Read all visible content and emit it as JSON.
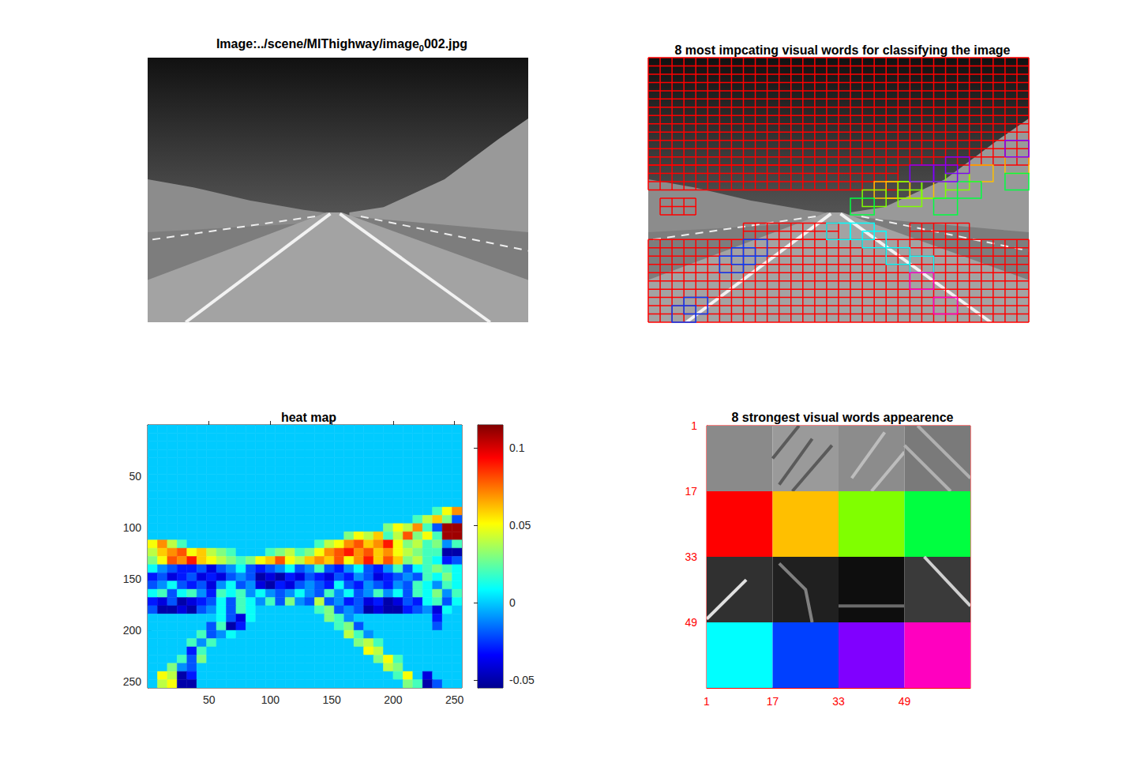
{
  "image_panel": {
    "title": {
      "text": "Image:../scene/MIThighway/image",
      "subscript": "0",
      "tail": "002.jpg"
    }
  },
  "overlay_panel": {
    "title": "8 most impcating visual words for classifying the image",
    "extent": [
      256,
      256
    ],
    "box_size": 16,
    "stride": 8
  },
  "words": [
    {
      "color": "#FF0000",
      "regions": [
        [
          0,
          0,
          256,
          104
        ],
        [
          0,
          104,
          168,
          128
        ],
        [
          8,
          136,
          32,
          152
        ],
        [
          64,
          160,
          128,
          176
        ],
        [
          176,
          160,
          216,
          176
        ],
        [
          0,
          176,
          256,
          256
        ]
      ]
    },
    {
      "color": "#FFBF00",
      "boxes": [
        [
          216,
          104
        ],
        [
          240,
          96
        ],
        [
          152,
          120
        ],
        [
          160,
          120
        ],
        [
          176,
          120
        ]
      ]
    },
    {
      "color": "#80FF00",
      "boxes": [
        [
          144,
          128
        ],
        [
          168,
          120
        ],
        [
          184,
          120
        ],
        [
          200,
          112
        ],
        [
          168,
          128
        ]
      ]
    },
    {
      "color": "#00FF40",
      "boxes": [
        [
          136,
          136
        ],
        [
          192,
          136
        ],
        [
          240,
          112
        ],
        [
          208,
          120
        ]
      ]
    },
    {
      "color": "#00FFFF",
      "boxes": [
        [
          120,
          160
        ],
        [
          136,
          160
        ],
        [
          144,
          168
        ],
        [
          160,
          184
        ],
        [
          176,
          192
        ]
      ]
    },
    {
      "color": "#0040FF",
      "boxes": [
        [
          64,
          176
        ],
        [
          56,
          184
        ],
        [
          48,
          192
        ],
        [
          16,
          240
        ],
        [
          24,
          232
        ]
      ]
    },
    {
      "color": "#8000FF",
      "boxes": [
        [
          240,
          80
        ],
        [
          176,
          104
        ],
        [
          192,
          104
        ],
        [
          200,
          96
        ]
      ]
    },
    {
      "color": "#FF00BF",
      "boxes": [
        [
          176,
          208
        ],
        [
          192,
          232
        ]
      ]
    }
  ],
  "appearance_panel": {
    "title": "8 strongest visual words appearence",
    "xlim": [
      1,
      65
    ],
    "ylim": [
      1,
      65
    ],
    "xticks": [
      1,
      17,
      33,
      49
    ],
    "yticks": [
      1,
      17,
      33,
      49
    ],
    "patch_size": 16
  },
  "chart_data": {
    "type": "heatmap",
    "title": "heat map",
    "xlim": [
      0,
      256
    ],
    "ylim": [
      0,
      256
    ],
    "xticks": [
      50,
      100,
      150,
      200,
      250
    ],
    "yticks": [
      50,
      100,
      150,
      200,
      250
    ],
    "colorbar": {
      "range": [
        -0.055,
        0.115
      ],
      "ticks": [
        -0.05,
        0,
        0.05,
        0.1
      ]
    },
    "x": [
      4,
      12,
      20,
      28,
      36,
      44,
      52,
      60,
      68,
      76,
      84,
      92,
      100,
      108,
      116,
      124,
      132,
      140,
      148,
      156,
      164,
      172,
      180,
      188,
      196,
      204,
      212,
      220,
      228,
      236,
      244,
      252
    ],
    "y": [
      4,
      12,
      20,
      28,
      36,
      44,
      52,
      60,
      68,
      76,
      84,
      92,
      100,
      108,
      116,
      124,
      132,
      140,
      148,
      156,
      164,
      172,
      180,
      188,
      196,
      204,
      212,
      220,
      228,
      236,
      244,
      252
    ],
    "cells": [
      [
        0,
        0,
        0,
        0,
        0,
        0,
        0,
        0,
        0,
        0,
        0,
        0,
        0,
        0,
        0,
        0,
        0,
        0,
        0,
        0,
        0,
        0,
        0,
        0,
        0,
        0,
        0,
        0,
        0,
        0,
        0,
        0
      ],
      [
        0,
        0,
        0,
        0,
        0,
        0,
        0,
        0,
        0,
        0,
        0,
        0,
        0,
        0,
        0,
        0,
        0,
        0,
        0,
        0,
        0,
        0,
        0,
        0,
        0,
        0,
        0,
        0,
        0,
        0,
        0,
        0
      ],
      [
        0,
        0,
        0,
        0,
        0,
        0,
        0,
        0,
        0,
        0,
        0,
        0,
        0,
        0,
        0,
        0,
        0,
        0,
        0,
        0,
        0,
        0,
        0,
        0,
        0,
        0,
        0,
        0,
        0,
        0,
        0,
        0
      ],
      [
        0,
        0,
        0,
        0,
        0,
        0,
        0,
        0,
        0,
        0,
        0,
        0,
        0,
        0,
        0,
        0,
        0,
        0,
        0,
        0,
        0,
        0,
        0,
        0,
        0,
        0,
        0,
        0,
        0,
        0,
        0,
        0
      ],
      [
        0,
        0,
        0,
        0,
        0,
        0,
        0,
        0,
        0,
        0,
        0,
        0,
        0,
        0,
        0,
        0,
        0,
        0,
        0,
        0,
        0,
        0,
        0,
        0,
        0,
        0,
        0,
        0,
        0,
        0,
        0,
        0
      ],
      [
        0,
        0,
        0,
        0,
        0,
        0,
        0,
        0,
        0,
        0,
        0,
        0,
        0,
        0,
        0,
        0,
        0,
        0,
        0,
        0,
        0,
        0,
        0,
        0,
        0,
        0,
        0,
        0,
        0,
        0,
        0,
        0
      ],
      [
        0,
        0,
        0,
        0,
        0,
        0,
        0,
        0,
        0,
        0,
        0,
        0,
        0,
        0,
        0,
        0,
        0,
        0,
        0,
        0,
        0,
        0,
        0,
        0,
        0,
        0,
        0,
        0,
        0,
        0,
        0,
        0
      ],
      [
        0,
        0,
        0,
        0,
        0,
        0,
        0,
        0,
        0,
        0,
        0,
        0,
        0,
        0,
        0,
        0,
        0,
        0,
        0,
        0,
        0,
        0,
        0,
        0,
        0,
        0,
        0,
        0,
        0,
        0,
        0,
        0
      ],
      [
        0,
        0,
        0,
        0,
        0,
        0,
        0,
        0,
        0,
        0,
        0,
        0,
        0,
        0,
        0,
        0,
        0,
        0,
        0,
        0,
        0,
        0,
        0,
        0,
        0,
        0,
        0,
        0,
        0,
        0,
        0,
        0
      ],
      [
        0,
        0,
        0,
        0,
        0,
        0,
        0,
        0,
        0,
        0,
        0,
        0,
        0,
        0,
        0,
        0,
        0,
        0,
        0,
        0,
        0,
        0,
        0,
        0,
        0,
        0,
        0,
        0,
        0,
        0,
        0,
        0
      ],
      [
        0,
        0,
        0,
        0,
        0,
        0,
        0,
        0,
        0,
        0,
        0,
        0,
        0,
        0,
        0,
        0,
        0,
        0,
        0,
        0,
        0,
        0,
        0,
        0,
        0,
        0,
        0,
        0,
        0,
        0.02,
        0.05,
        0.07
      ],
      [
        0,
        0,
        0,
        0,
        0,
        0,
        0,
        0,
        0,
        0,
        0,
        0,
        0,
        0,
        0,
        0,
        0,
        0,
        0,
        0,
        0,
        0,
        0,
        0,
        0,
        0,
        0,
        0.02,
        0.04,
        0.06,
        0.03,
        -0.02
      ],
      [
        0,
        0,
        0,
        0,
        0,
        0,
        0,
        0,
        0,
        0,
        0,
        0,
        0,
        0,
        0,
        0,
        0,
        0,
        0,
        0,
        0,
        0,
        0,
        0,
        0.03,
        0.05,
        0.04,
        0.07,
        0.02,
        -0.02,
        0.11,
        0.11
      ],
      [
        0,
        0,
        0,
        0,
        0,
        0,
        0,
        0,
        0,
        0,
        0,
        0,
        0,
        0,
        0,
        0,
        0,
        0,
        0,
        0,
        0.03,
        0.05,
        0.04,
        0.06,
        0.02,
        0.04,
        0.08,
        0.03,
        0.05,
        0.02,
        0.11,
        0.11
      ],
      [
        0.05,
        0.07,
        0.04,
        0.02,
        0,
        0,
        0,
        0,
        0,
        0,
        0,
        0,
        0,
        0,
        0,
        0,
        0,
        0.02,
        0.04,
        0.05,
        0.07,
        0.08,
        0.06,
        0.07,
        0.09,
        0.05,
        0.03,
        0.04,
        0.02,
        0.03,
        -0.01,
        0.02
      ],
      [
        0.04,
        0.06,
        0.07,
        0.08,
        0.05,
        0.06,
        0.04,
        0.03,
        0.02,
        0,
        0,
        0,
        0.02,
        0.03,
        0.04,
        0.02,
        0.03,
        0.05,
        0.07,
        0.08,
        0.09,
        0.07,
        0.08,
        0.06,
        0.07,
        0.05,
        0.04,
        0.03,
        0.02,
        0.02,
        -0.05,
        -0.05
      ],
      [
        0.03,
        0.05,
        0.08,
        0.07,
        0.09,
        0.06,
        0.05,
        0.04,
        0.03,
        0.02,
        0.03,
        0.05,
        0.06,
        0.08,
        0.05,
        0.04,
        0.06,
        0.07,
        0.06,
        0.08,
        0.05,
        0.07,
        0.09,
        0.06,
        0.08,
        0.06,
        0.03,
        0.04,
        0.02,
        0.01,
        -0.03,
        -0.02
      ],
      [
        0.01,
        -0.01,
        -0.02,
        -0.03,
        -0.03,
        -0.02,
        -0.04,
        -0.02,
        -0.01,
        0.01,
        -0.02,
        -0.03,
        -0.02,
        -0.01,
        0.01,
        -0.02,
        -0.01,
        0.02,
        -0.02,
        -0.03,
        -0.01,
        0.01,
        -0.02,
        -0.03,
        -0.01,
        0.02,
        -0.02,
        0.01,
        0.02,
        0.03,
        0.02,
        0.01
      ],
      [
        -0.03,
        -0.02,
        -0.04,
        -0.03,
        -0.02,
        -0.04,
        -0.03,
        -0.04,
        -0.02,
        -0.01,
        -0.02,
        -0.05,
        -0.04,
        -0.05,
        -0.03,
        -0.04,
        -0.02,
        -0.03,
        -0.04,
        -0.02,
        -0.03,
        -0.01,
        -0.02,
        -0.04,
        -0.03,
        -0.02,
        -0.01,
        -0.02,
        0.02,
        0.01,
        0.03,
        0.01
      ],
      [
        -0.02,
        -0.01,
        0.01,
        -0.02,
        -0.03,
        -0.02,
        -0.04,
        -0.01,
        0.01,
        -0.02,
        -0.01,
        -0.04,
        -0.05,
        -0.03,
        -0.04,
        -0.02,
        -0.01,
        -0.02,
        -0.03,
        0.01,
        -0.02,
        -0.03,
        -0.01,
        -0.02,
        -0.03,
        -0.01,
        -0.02,
        0.02,
        0.01,
        -0.01,
        0.02,
        0.01
      ],
      [
        0.01,
        0.02,
        -0.02,
        0.01,
        0.02,
        -0.01,
        -0.03,
        0.02,
        0.01,
        0.02,
        -0.01,
        0.01,
        -0.01,
        -0.02,
        -0.01,
        0.01,
        -0.01,
        -0.02,
        0.02,
        -0.01,
        0.01,
        -0.02,
        -0.01,
        0.02,
        -0.01,
        0.01,
        -0.02,
        0.02,
        0.01,
        0.03,
        -0.01,
        0.02
      ],
      [
        -0.03,
        -0.04,
        -0.02,
        -0.05,
        -0.04,
        -0.03,
        -0.02,
        0.01,
        -0.02,
        0.02,
        0.01,
        -0.01,
        0.02,
        -0.02,
        0.03,
        -0.01,
        -0.02,
        0.04,
        -0.02,
        -0.01,
        -0.03,
        -0.02,
        -0.04,
        -0.03,
        -0.05,
        -0.04,
        -0.02,
        -0.03,
        0.01,
        0.02,
        -0.02,
        0.01
      ],
      [
        -0.02,
        -0.05,
        -0.05,
        -0.04,
        -0.05,
        -0.02,
        -0.01,
        0.01,
        -0.02,
        0.02,
        0.01,
        0,
        0,
        0,
        0,
        0,
        0,
        0.02,
        0.03,
        -0.02,
        -0.01,
        -0.02,
        -0.05,
        -0.04,
        -0.05,
        -0.05,
        -0.03,
        -0.02,
        -0.01,
        -0.04,
        0.01,
        0
      ],
      [
        0,
        0,
        0,
        0,
        0,
        0,
        0,
        0.01,
        -0.02,
        -0.04,
        0.01,
        0,
        0,
        0,
        0,
        0,
        0,
        0,
        0.03,
        0.02,
        -0.01,
        0,
        0,
        0,
        0,
        0,
        0,
        0,
        0,
        -0.03,
        0,
        0
      ],
      [
        0,
        0,
        0,
        0,
        0,
        0,
        -0.02,
        0.02,
        -0.05,
        -0.03,
        0,
        0,
        0,
        0,
        0,
        0,
        0,
        0,
        0,
        0.02,
        0.03,
        -0.02,
        0,
        0,
        0,
        0,
        0,
        0,
        0,
        -0.02,
        0,
        0
      ],
      [
        0,
        0,
        0,
        0,
        0,
        0.02,
        -0.02,
        -0.01,
        0.01,
        0,
        0,
        0,
        0,
        0,
        0,
        0,
        0,
        0,
        0,
        0,
        0.04,
        0.02,
        -0.01,
        0,
        0,
        0,
        0,
        0,
        0,
        0,
        0,
        0
      ],
      [
        0,
        0,
        0,
        0,
        0.02,
        -0.01,
        0.02,
        0,
        0,
        0,
        0,
        0,
        0,
        0,
        0,
        0,
        0,
        0,
        0,
        0,
        0,
        0.03,
        0.04,
        0.02,
        0,
        0,
        0,
        0,
        0,
        0,
        0,
        0
      ],
      [
        0,
        0,
        0,
        0,
        -0.03,
        0.02,
        0,
        0,
        0,
        0,
        0,
        0,
        0,
        0,
        0,
        0,
        0,
        0,
        0,
        0,
        0,
        0,
        0.05,
        0.04,
        0,
        0,
        0,
        0,
        0,
        0,
        0,
        0
      ],
      [
        0,
        0,
        0,
        0.02,
        -0.02,
        0.03,
        0,
        0,
        0,
        0,
        0,
        0,
        0,
        0,
        0,
        0,
        0,
        0,
        0,
        0,
        0,
        0,
        0,
        0.03,
        0.05,
        0.02,
        0,
        0,
        0,
        0,
        0,
        0
      ],
      [
        0,
        0,
        0.03,
        -0.01,
        -0.02,
        0,
        0,
        0,
        0,
        0,
        0,
        0,
        0,
        0,
        0,
        0,
        0,
        0,
        0,
        0,
        0,
        0,
        0,
        0,
        0.04,
        0.03,
        0,
        0,
        0,
        0,
        0,
        0
      ],
      [
        0,
        0.05,
        0.04,
        -0.05,
        -0.03,
        0,
        0,
        0,
        0,
        0,
        0,
        0,
        0,
        0,
        0,
        0,
        0,
        0,
        0,
        0,
        0,
        0,
        0,
        0,
        0,
        0.02,
        0.05,
        0,
        -0.04,
        0,
        0,
        0
      ],
      [
        0,
        0.04,
        0.05,
        -0.05,
        -0.05,
        0,
        0,
        0,
        0,
        0,
        0,
        0,
        0,
        0,
        0,
        0,
        0,
        0,
        0,
        0,
        0,
        0,
        0,
        0,
        0,
        0,
        0.03,
        0.02,
        -0.05,
        -0.02,
        0,
        0
      ]
    ]
  }
}
